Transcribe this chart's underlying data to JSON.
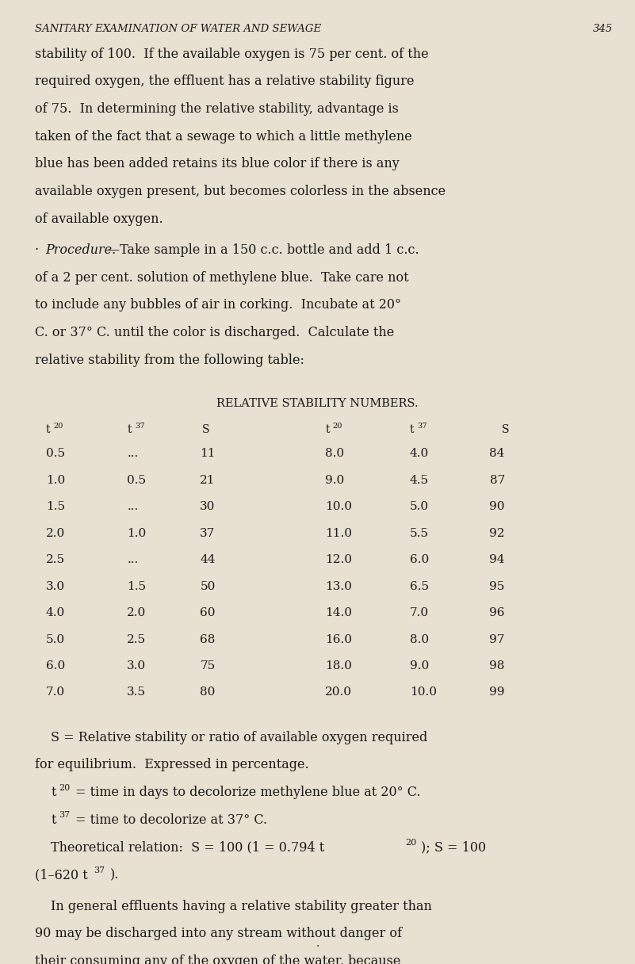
{
  "bg_color": "#e8e0d0",
  "text_color": "#1a1a1a",
  "page_width": 8.01,
  "page_height": 12.16,
  "header_italic": "SANITARY EXAMINATION OF WATER AND SEWAGE",
  "header_page": "345",
  "table_title": "RELATIVE STABILITY NUMBERS.",
  "table_col_headers": [
    "t20",
    "t37",
    "S",
    "t20",
    "t37",
    "S"
  ],
  "table_rows_left": [
    [
      "0.5",
      "...",
      "11"
    ],
    [
      "1.0",
      "0.5",
      "21"
    ],
    [
      "1.5",
      "...",
      "30"
    ],
    [
      "2.0",
      "1.0",
      "37"
    ],
    [
      "2.5",
      "...",
      "44"
    ],
    [
      "3.0",
      "1.5",
      "50"
    ],
    [
      "4.0",
      "2.0",
      "60"
    ],
    [
      "5.0",
      "2.5",
      "68"
    ],
    [
      "6.0",
      "3.0",
      "75"
    ],
    [
      "7.0",
      "3.5",
      "80"
    ]
  ],
  "table_rows_right": [
    [
      "8.0",
      "4.0",
      "84"
    ],
    [
      "9.0",
      "4.5",
      "87"
    ],
    [
      "10.0",
      "5.0",
      "90"
    ],
    [
      "11.0",
      "5.5",
      "92"
    ],
    [
      "12.0",
      "6.0",
      "94"
    ],
    [
      "13.0",
      "6.5",
      "95"
    ],
    [
      "14.0",
      "7.0",
      "96"
    ],
    [
      "16.0",
      "8.0",
      "97"
    ],
    [
      "18.0",
      "9.0",
      "98"
    ],
    [
      "20.0",
      "10.0",
      "99"
    ]
  ]
}
